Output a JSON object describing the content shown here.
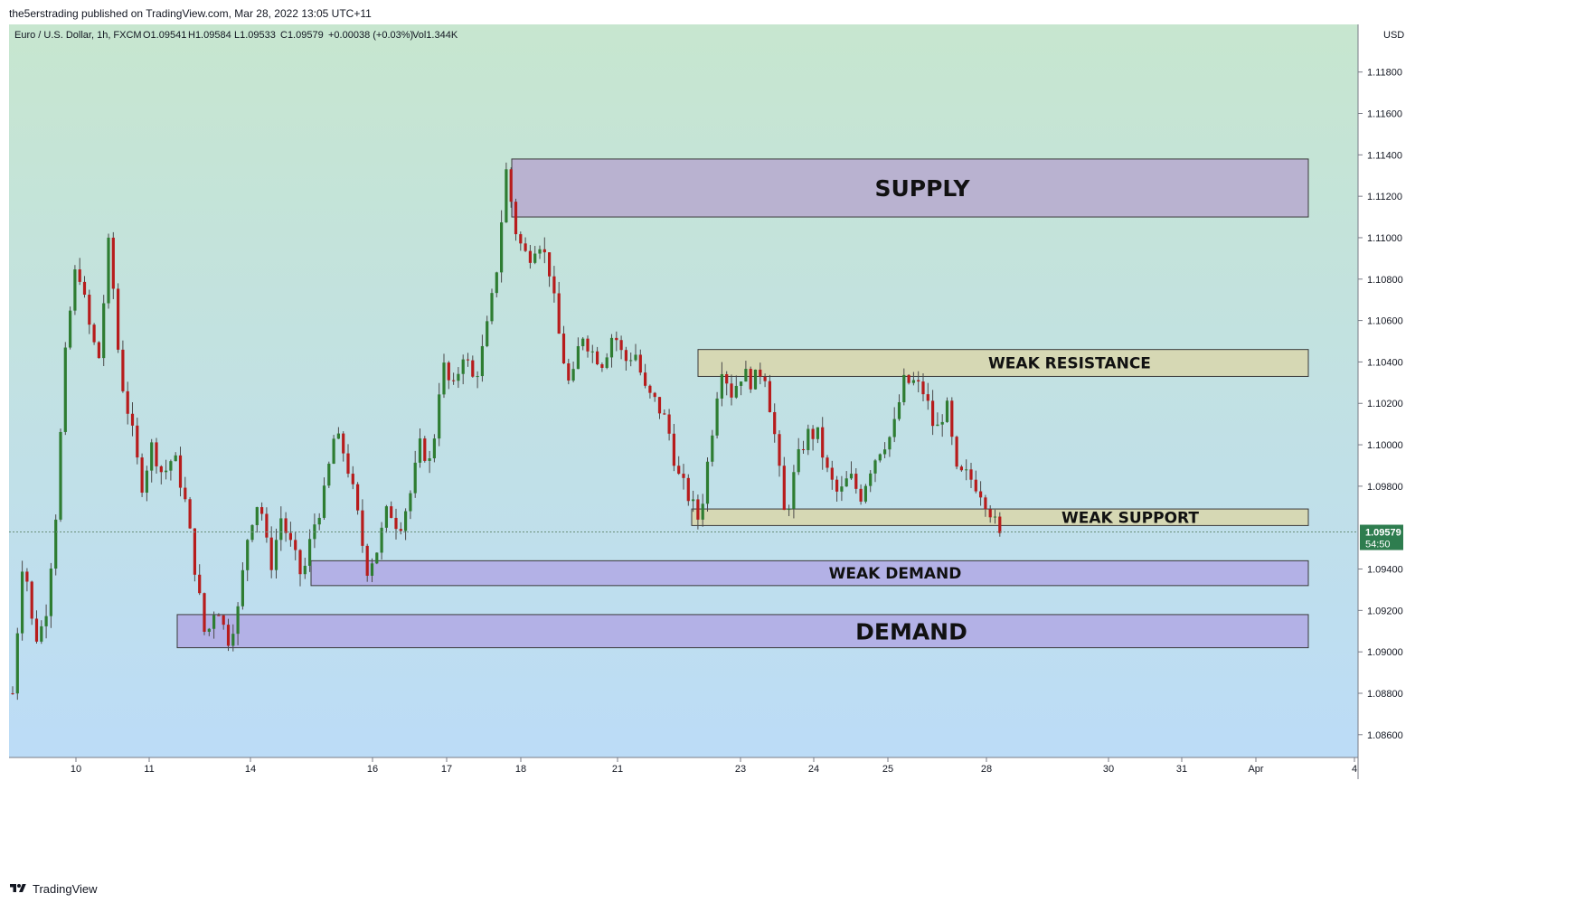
{
  "publisher": {
    "line": "the5erstrading published on TradingView.com, Mar 28, 2022 13:05 UTC+11"
  },
  "footer": {
    "brand": "TradingView",
    "brand_icon": "tradingview-logo-icon"
  },
  "colors": {
    "bg_top": "#c7e6cf",
    "bg_bottom": "#bcdcf7",
    "candle_up": "#2e7d32",
    "candle_down": "#b71c1c",
    "wick": "#4a4a4a",
    "supply_zone": "#b9b2d0",
    "demand_zone": "#b3b1e6",
    "weak_zone": "#d6d8b4",
    "last_price_bg": "#2e7d4f"
  },
  "chart_data": {
    "type": "candlestick",
    "symbol_info": {
      "name": "Euro / U.S. Dollar, 1h, FXCM",
      "O": "O1.09541",
      "H": "H1.09584",
      "L": "L1.09533",
      "C": "C1.09579",
      "change": "+0.00038 (+0.03%)",
      "volume": "Vol1.344K"
    },
    "currency_label": "USD",
    "ylim": [
      1.0849,
      1.1203
    ],
    "y_ticks": [
      "1.11800",
      "1.11600",
      "1.11400",
      "1.11200",
      "1.11000",
      "1.10800",
      "1.10600",
      "1.10400",
      "1.10200",
      "1.10000",
      "1.09800",
      "1.09400",
      "1.09200",
      "1.09000",
      "1.08800",
      "1.08600"
    ],
    "x_ticks": [
      "10",
      "11",
      "14",
      "16",
      "17",
      "18",
      "21",
      "23",
      "24",
      "25",
      "28",
      "30",
      "31",
      "Apr",
      "4"
    ],
    "last_price": {
      "value": 1.09579,
      "label": "1.09579",
      "countdown": "54:50"
    },
    "zones": [
      {
        "label": "SUPPLY",
        "low": 1.111,
        "high": 1.1138,
        "start": "18",
        "end": "31",
        "style": "supply"
      },
      {
        "label": "WEAK RESISTANCE",
        "low": 1.1033,
        "high": 1.1046,
        "start": "22",
        "end": "31",
        "style": "weak"
      },
      {
        "label": "WEAK SUPPORT",
        "low": 1.0961,
        "high": 1.0969,
        "start": "22",
        "end": "31",
        "style": "weak"
      },
      {
        "label": "WEAK DEMAND",
        "low": 1.0932,
        "high": 1.0944,
        "start": "15",
        "end": "31",
        "style": "demand"
      },
      {
        "label": "DEMAND",
        "low": 1.0902,
        "high": 1.0918,
        "start": "11",
        "end": "31",
        "style": "demand"
      }
    ],
    "price_path": [
      {
        "date": "Mar 9",
        "price": 1.088
      },
      {
        "date": "Mar 9",
        "price": 1.095
      },
      {
        "date": "Mar 9",
        "price": 1.0905
      },
      {
        "date": "Mar 9",
        "price": 1.0915
      },
      {
        "date": "Mar 9",
        "price": 1.0965
      },
      {
        "date": "Mar 9",
        "price": 1.105
      },
      {
        "date": "Mar 10",
        "price": 1.109
      },
      {
        "date": "Mar 10",
        "price": 1.106
      },
      {
        "date": "Mar 10",
        "price": 1.104
      },
      {
        "date": "Mar 11",
        "price": 1.11
      },
      {
        "date": "Mar 11",
        "price": 1.1035
      },
      {
        "date": "Mar 11",
        "price": 1.101
      },
      {
        "date": "Mar 11",
        "price": 1.098
      },
      {
        "date": "Mar 11",
        "price": 1.1
      },
      {
        "date": "Mar 11",
        "price": 1.0985
      },
      {
        "date": "Mar 11",
        "price": 1.0995
      },
      {
        "date": "Mar 11",
        "price": 1.0975
      },
      {
        "date": "Mar 14",
        "price": 1.094
      },
      {
        "date": "Mar 14",
        "price": 1.0905
      },
      {
        "date": "Mar 14",
        "price": 1.0925
      },
      {
        "date": "Mar 14",
        "price": 1.0905
      },
      {
        "date": "Mar 14",
        "price": 1.092
      },
      {
        "date": "Mar 15",
        "price": 1.096
      },
      {
        "date": "Mar 15",
        "price": 1.0975
      },
      {
        "date": "Mar 15",
        "price": 1.094
      },
      {
        "date": "Mar 15",
        "price": 1.0965
      },
      {
        "date": "Mar 15",
        "price": 1.095
      },
      {
        "date": "Mar 15",
        "price": 1.0935
      },
      {
        "date": "Mar 15",
        "price": 1.096
      },
      {
        "date": "Mar 15",
        "price": 1.0975
      },
      {
        "date": "Mar 16",
        "price": 1.1005
      },
      {
        "date": "Mar 16",
        "price": 1.0995
      },
      {
        "date": "Mar 16",
        "price": 1.097
      },
      {
        "date": "Mar 16",
        "price": 1.094
      },
      {
        "date": "Mar 16",
        "price": 1.095
      },
      {
        "date": "Mar 16",
        "price": 1.097
      },
      {
        "date": "Mar 16",
        "price": 1.096
      },
      {
        "date": "Mar 16",
        "price": 1.0975
      },
      {
        "date": "Mar 17",
        "price": 1.1
      },
      {
        "date": "Mar 17",
        "price": 1.099
      },
      {
        "date": "Mar 17",
        "price": 1.104
      },
      {
        "date": "Mar 17",
        "price": 1.1025
      },
      {
        "date": "Mar 17",
        "price": 1.1045
      },
      {
        "date": "Mar 17",
        "price": 1.103
      },
      {
        "date": "Mar 17",
        "price": 1.105
      },
      {
        "date": "Mar 18",
        "price": 1.108
      },
      {
        "date": "Mar 18",
        "price": 1.1132
      },
      {
        "date": "Mar 18",
        "price": 1.11
      },
      {
        "date": "Mar 18",
        "price": 1.109
      },
      {
        "date": "Mar 18",
        "price": 1.11
      },
      {
        "date": "Mar 18",
        "price": 1.1085
      },
      {
        "date": "Mar 21",
        "price": 1.105
      },
      {
        "date": "Mar 21",
        "price": 1.1025
      },
      {
        "date": "Mar 21",
        "price": 1.1055
      },
      {
        "date": "Mar 21",
        "price": 1.1045
      },
      {
        "date": "Mar 21",
        "price": 1.104
      },
      {
        "date": "Mar 21",
        "price": 1.1055
      },
      {
        "date": "Mar 21",
        "price": 1.104
      },
      {
        "date": "Mar 22",
        "price": 1.1045
      },
      {
        "date": "Mar 22",
        "price": 1.1025
      },
      {
        "date": "Mar 22",
        "price": 1.102
      },
      {
        "date": "Mar 22",
        "price": 1.101
      },
      {
        "date": "Mar 22",
        "price": 1.0985
      },
      {
        "date": "Mar 22",
        "price": 1.0975
      },
      {
        "date": "Mar 22",
        "price": 1.0963
      },
      {
        "date": "Mar 22",
        "price": 1.1
      },
      {
        "date": "Mar 23",
        "price": 1.104
      },
      {
        "date": "Mar 23",
        "price": 1.1025
      },
      {
        "date": "Mar 23",
        "price": 1.1035
      },
      {
        "date": "Mar 23",
        "price": 1.103
      },
      {
        "date": "Mar 23",
        "price": 1.1038
      },
      {
        "date": "Mar 24",
        "price": 1.1005
      },
      {
        "date": "Mar 24",
        "price": 1.0963
      },
      {
        "date": "Mar 24",
        "price": 1.099
      },
      {
        "date": "Mar 24",
        "price": 1.1005
      },
      {
        "date": "Mar 24",
        "price": 1.1005
      },
      {
        "date": "Mar 25",
        "price": 1.0985
      },
      {
        "date": "Mar 25",
        "price": 1.0975
      },
      {
        "date": "Mar 25",
        "price": 1.0985
      },
      {
        "date": "Mar 25",
        "price": 1.0975
      },
      {
        "date": "Mar 25",
        "price": 1.099
      },
      {
        "date": "Mar 25",
        "price": 1.1
      },
      {
        "date": "Mar 25",
        "price": 1.1005
      },
      {
        "date": "Mar 25",
        "price": 1.103
      },
      {
        "date": "Mar 25",
        "price": 1.103
      },
      {
        "date": "Mar 25",
        "price": 1.1025
      },
      {
        "date": "Mar 25",
        "price": 1.1005
      },
      {
        "date": "Mar 25",
        "price": 1.102
      },
      {
        "date": "Mar 25",
        "price": 1.0985
      },
      {
        "date": "Mar 28",
        "price": 1.0985
      },
      {
        "date": "Mar 28",
        "price": 1.098
      },
      {
        "date": "Mar 28",
        "price": 1.097
      },
      {
        "date": "Mar 28",
        "price": 1.0955
      }
    ]
  }
}
